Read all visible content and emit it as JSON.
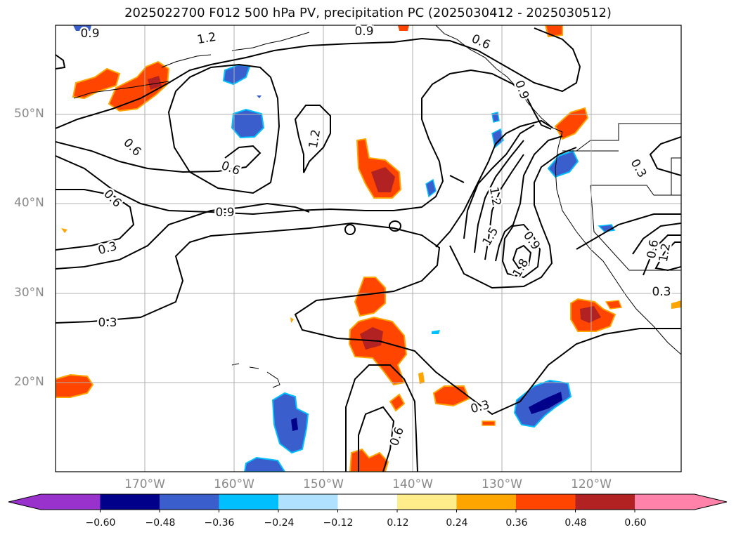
{
  "title": "2025022700 F012 500 hPa PV, precipitation PC (2025030412 - 2025030512)",
  "lat_labels": [
    "50°N",
    "40°N",
    "30°N",
    "20°N"
  ],
  "lon_labels": [
    "170°W",
    "160°W",
    "150°W",
    "140°W",
    "130°W",
    "120°W"
  ],
  "contour_labels": [
    "0.9",
    "1.2",
    "0.9",
    "0.6",
    "0.9",
    "0.6",
    "0.6",
    "1.2",
    "0.6",
    "0.9",
    "0.3",
    "0.3",
    "1.2",
    "1.5",
    "0.9",
    "1.8",
    "0.3",
    "0.6",
    "0.3",
    "1.2",
    "0.6",
    "0.3"
  ],
  "colorbar": {
    "ticks": [
      "−0.60",
      "−0.48",
      "−0.36",
      "−0.24",
      "−0.12",
      "0.12",
      "0.24",
      "0.36",
      "0.48",
      "0.60"
    ],
    "colors": [
      "#9932cc",
      "#00008b",
      "#3a5fcd",
      "#00bfff",
      "#b0e2ff",
      "#ffffff",
      "#ffec8b",
      "#ffa500",
      "#ff4500",
      "#b22222",
      "#ff82ab"
    ]
  }
}
